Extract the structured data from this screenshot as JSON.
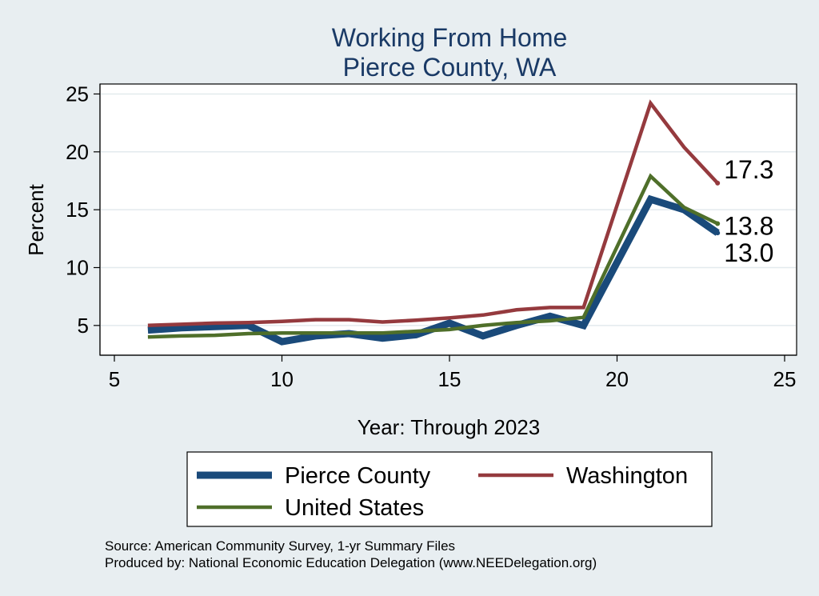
{
  "chart_data": {
    "type": "line",
    "title": [
      "Working From Home",
      "Pierce County, WA"
    ],
    "xlabel": "Year: Through 2023",
    "ylabel": "Percent",
    "xlim": [
      5,
      25
    ],
    "ylim": [
      2.5,
      26
    ],
    "xticks": [
      5,
      10,
      15,
      20,
      25
    ],
    "yticks": [
      5,
      10,
      15,
      20,
      25
    ],
    "grid": "horizontal",
    "legend_position": "bottom",
    "series": [
      {
        "name": "Pierce County",
        "color": "#1a4a7a",
        "x": [
          6,
          7,
          8,
          9,
          10,
          11,
          12,
          13,
          14,
          15,
          16,
          17,
          18,
          19,
          21,
          22,
          23
        ],
        "y": [
          4.6,
          4.8,
          4.9,
          5.0,
          3.6,
          4.1,
          4.3,
          3.9,
          4.2,
          5.2,
          4.1,
          5.0,
          5.8,
          5.0,
          15.9,
          15.0,
          13.0
        ],
        "end_label": "13.0"
      },
      {
        "name": "Washington",
        "color": "#953a3e",
        "x": [
          6,
          7,
          8,
          9,
          10,
          11,
          12,
          13,
          14,
          15,
          16,
          17,
          18,
          19,
          21,
          22,
          23
        ],
        "y": [
          5.0,
          5.1,
          5.2,
          5.25,
          5.35,
          5.5,
          5.5,
          5.3,
          5.45,
          5.65,
          5.9,
          6.35,
          6.55,
          6.55,
          24.2,
          20.4,
          17.3
        ],
        "end_label": "17.3"
      },
      {
        "name": "United States",
        "color": "#4f6f2a",
        "x": [
          6,
          7,
          8,
          9,
          10,
          11,
          12,
          13,
          14,
          15,
          16,
          17,
          18,
          19,
          21,
          22,
          23
        ],
        "y": [
          4.0,
          4.1,
          4.15,
          4.3,
          4.35,
          4.35,
          4.35,
          4.35,
          4.5,
          4.65,
          5.0,
          5.25,
          5.4,
          5.7,
          17.9,
          15.2,
          13.8
        ],
        "end_label": "13.8"
      }
    ],
    "annotations": [
      "Source: American Community Survey, 1-yr Summary Files",
      "Produced by: National Economic Education Delegation (www.NEEDelegation.org)"
    ]
  }
}
